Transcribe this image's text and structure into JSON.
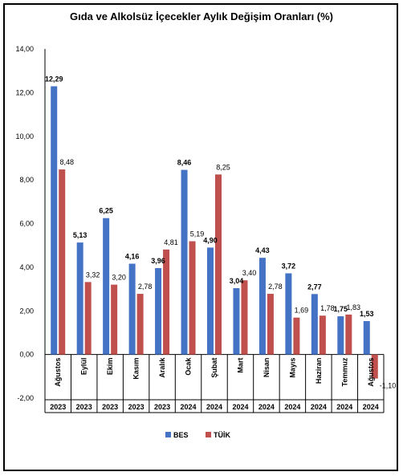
{
  "chart_data": {
    "type": "bar",
    "title": "Gıda ve Alkolsüz İçecekler Aylık Değişim Oranları (%)",
    "categories": [
      "Ağustos",
      "Eylül",
      "Ekim",
      "Kasım",
      "Aralık",
      "Ocak",
      "Şubat",
      "Mart",
      "Nisan",
      "Mayıs",
      "Haziran",
      "Temmuz",
      "Ağustos"
    ],
    "years": [
      "2023",
      "2023",
      "2023",
      "2023",
      "2023",
      "2024",
      "2024",
      "2024",
      "2024",
      "2024",
      "2024",
      "2024",
      "2024"
    ],
    "series": [
      {
        "name": "BES",
        "color": "#4472c4",
        "values": [
          12.29,
          5.13,
          6.25,
          4.16,
          3.96,
          8.46,
          4.9,
          3.04,
          4.43,
          3.72,
          2.77,
          1.75,
          1.53
        ]
      },
      {
        "name": "TÜİK",
        "color": "#c0504d",
        "values": [
          8.48,
          3.32,
          3.2,
          2.78,
          4.81,
          5.19,
          8.25,
          3.4,
          2.78,
          1.69,
          1.78,
          1.83,
          -1.1
        ]
      }
    ],
    "value_labels": {
      "BES": [
        "12,29",
        "5,13",
        "6,25",
        "4,16",
        "3,96",
        "8,46",
        "4,90",
        "3,04",
        "4,43",
        "3,72",
        "2,77",
        "1,75",
        "1,53"
      ],
      "TÜİK": [
        "8,48",
        "3,32",
        "3,20",
        "2,78",
        "4,81",
        "5,19",
        "8,25",
        "3,40",
        "2,78",
        "1,69",
        "1,78",
        "1,83",
        "-1,10"
      ]
    },
    "ylim": [
      -2,
      14
    ],
    "yticks": [
      -2,
      0,
      2,
      4,
      6,
      8,
      10,
      12,
      14
    ],
    "ytick_labels": [
      "-2,00",
      "0,00",
      "2,00",
      "4,00",
      "6,00",
      "8,00",
      "10,00",
      "12,00",
      "14,00"
    ],
    "grid": false,
    "legend": "bottom-center"
  }
}
